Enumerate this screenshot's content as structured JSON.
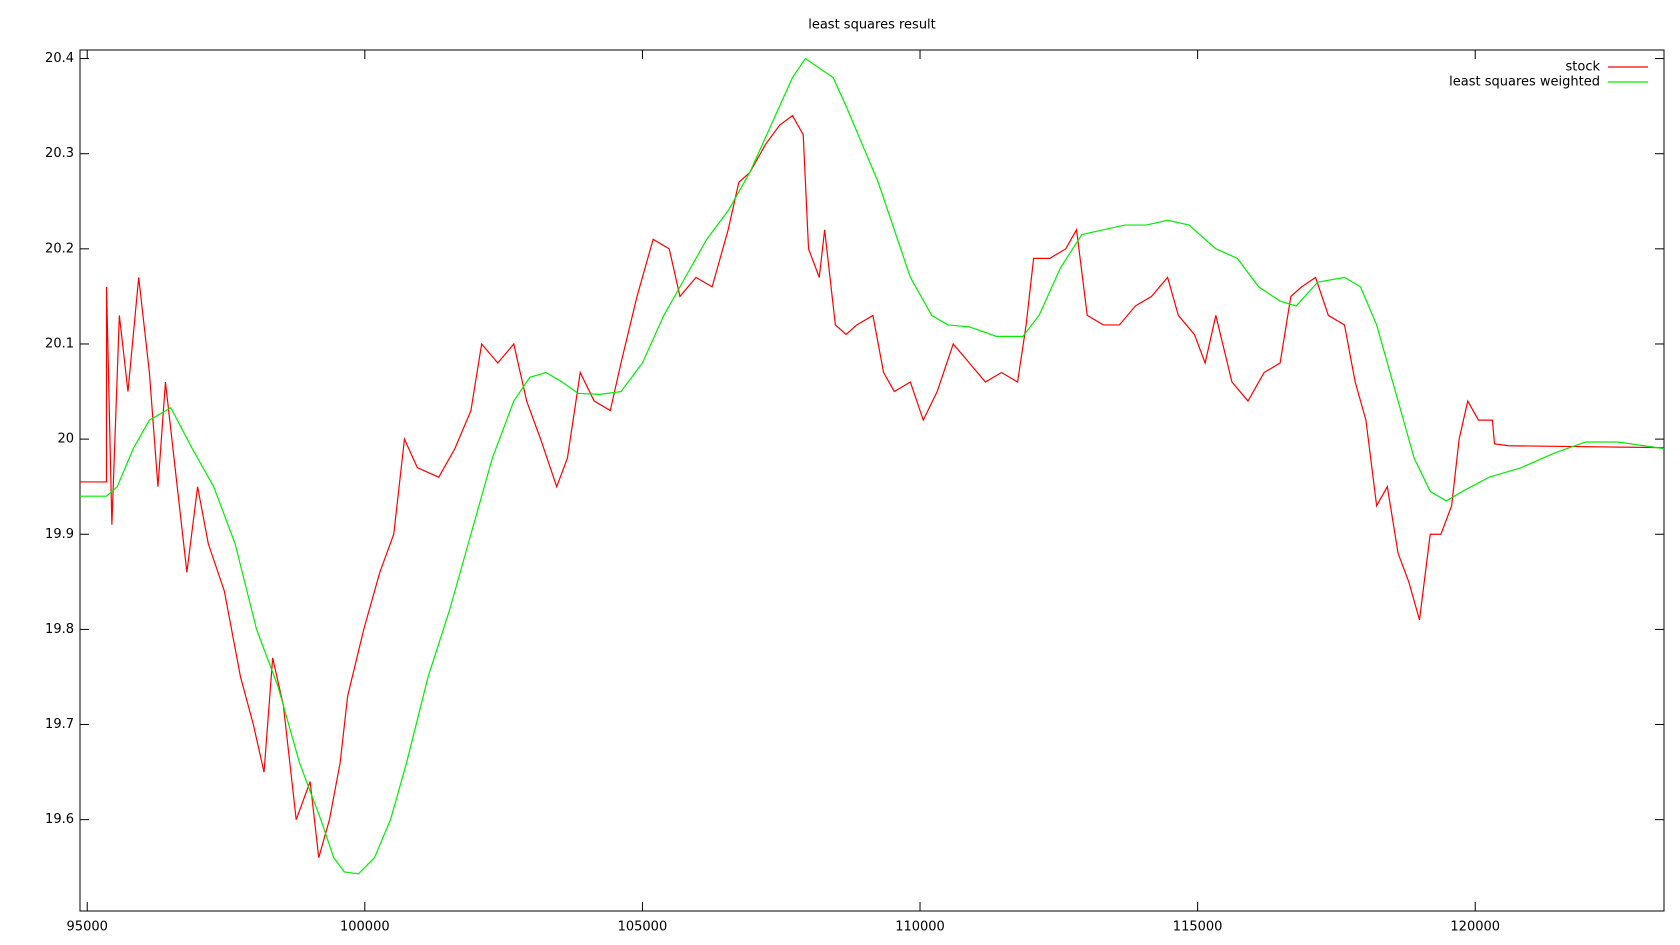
{
  "chart_data": {
    "type": "line",
    "title": "least squares result",
    "xlim": [
      94870,
      123400
    ],
    "ylim": [
      19.504,
      20.409
    ],
    "xticks": [
      95000,
      100000,
      105000,
      110000,
      115000,
      120000
    ],
    "yticks": [
      19.6,
      19.7,
      19.8,
      19.9,
      20,
      20.1,
      20.2,
      20.3,
      20.4
    ],
    "legend": "top-right",
    "series": [
      {
        "name": "stock",
        "color": "#ff0000",
        "x": [
          94870,
          95347,
          95348,
          95444,
          95579,
          95734,
          95927,
          96120,
          96274,
          96409,
          96602,
          96795,
          96988,
          97181,
          97471,
          97761,
          97992,
          98185,
          98340,
          98533,
          98764,
          99015,
          99170,
          99363,
          99556,
          99691,
          99981,
          100270,
          100521,
          100714,
          100946,
          101332,
          101622,
          101911,
          102104,
          102394,
          102683,
          102915,
          103166,
          103456,
          103649,
          103880,
          104131,
          104421,
          104614,
          104903,
          105193,
          105483,
          105676,
          105965,
          106255,
          106544,
          106737,
          106931,
          107220,
          107471,
          107703,
          107896,
          107992,
          108185,
          108282,
          108475,
          108668,
          108861,
          109151,
          109344,
          109537,
          109826,
          110058,
          110309,
          110598,
          110888,
          111178,
          111467,
          111757,
          111911,
          112046,
          112336,
          112625,
          112819,
          113012,
          113301,
          113591,
          113880,
          114170,
          114459,
          114653,
          114942,
          115135,
          115328,
          115618,
          115907,
          116197,
          116486,
          116679,
          116873,
          117124,
          117355,
          117645,
          117838,
          118031,
          118224,
          118417,
          118610,
          118803,
          118996,
          119189,
          119382,
          119575,
          119710,
          119865,
          120058,
          120309,
          120347,
          120598,
          123397
        ],
        "values": [
          19.955,
          19.955,
          20.16,
          19.91,
          20.13,
          20.05,
          20.17,
          20.07,
          19.95,
          20.06,
          19.96,
          19.86,
          19.95,
          19.89,
          19.84,
          19.75,
          19.7,
          19.65,
          19.77,
          19.72,
          19.6,
          19.64,
          19.56,
          19.6,
          19.66,
          19.73,
          19.8,
          19.86,
          19.9,
          20.0,
          19.97,
          19.96,
          19.99,
          20.03,
          20.1,
          20.08,
          20.1,
          20.04,
          20.0,
          19.95,
          19.98,
          20.07,
          20.04,
          20.03,
          20.08,
          20.15,
          20.21,
          20.2,
          20.15,
          20.17,
          20.16,
          20.22,
          20.27,
          20.28,
          20.31,
          20.33,
          20.34,
          20.32,
          20.2,
          20.17,
          20.22,
          20.12,
          20.11,
          20.12,
          20.13,
          20.07,
          20.05,
          20.06,
          20.02,
          20.05,
          20.1,
          20.08,
          20.06,
          20.07,
          20.06,
          20.12,
          20.19,
          20.19,
          20.2,
          20.22,
          20.13,
          20.12,
          20.12,
          20.14,
          20.15,
          20.17,
          20.13,
          20.11,
          20.08,
          20.13,
          20.06,
          20.04,
          20.07,
          20.08,
          20.15,
          20.16,
          20.17,
          20.13,
          20.12,
          20.06,
          20.02,
          19.93,
          19.95,
          19.88,
          19.85,
          19.81,
          19.9,
          19.9,
          19.93,
          20.0,
          20.04,
          20.02,
          20.02,
          19.995,
          19.993,
          19.991
        ]
      },
      {
        "name": "least squares weighted",
        "color": "#00ee00",
        "x": [
          94870,
          95347,
          95541,
          95830,
          96120,
          96506,
          96892,
          97278,
          97664,
          98050,
          98436,
          98822,
          99208,
          99440,
          99633,
          99884,
          100174,
          100463,
          100753,
          101139,
          101525,
          101911,
          102297,
          102683,
          102973,
          103263,
          103552,
          103842,
          104228,
          104614,
          105000,
          105386,
          105772,
          106158,
          106544,
          106931,
          107317,
          107703,
          107934,
          108185,
          108436,
          108668,
          108958,
          109247,
          109537,
          109826,
          110212,
          110502,
          110888,
          111371,
          111853,
          112143,
          112529,
          112915,
          113301,
          113687,
          114073,
          114459,
          114846,
          115328,
          115714,
          116100,
          116486,
          116776,
          117162,
          117645,
          117934,
          118224,
          118514,
          118900,
          119189,
          119479,
          119768,
          120251,
          120830,
          121409,
          121988,
          122568,
          123397
        ],
        "values": [
          19.94,
          19.94,
          19.95,
          19.99,
          20.02,
          20.033,
          19.99,
          19.95,
          19.89,
          19.8,
          19.74,
          19.66,
          19.6,
          19.56,
          19.545,
          19.543,
          19.56,
          19.6,
          19.66,
          19.75,
          19.82,
          19.9,
          19.98,
          20.04,
          20.065,
          20.07,
          20.06,
          20.048,
          20.047,
          20.05,
          20.08,
          20.13,
          20.17,
          20.21,
          20.24,
          20.28,
          20.33,
          20.38,
          20.4,
          20.39,
          20.38,
          20.35,
          20.31,
          20.27,
          20.22,
          20.17,
          20.13,
          20.12,
          20.118,
          20.108,
          20.108,
          20.13,
          20.18,
          20.215,
          20.22,
          20.225,
          20.225,
          20.23,
          20.225,
          20.2,
          20.19,
          20.16,
          20.145,
          20.14,
          20.165,
          20.17,
          20.16,
          20.12,
          20.06,
          19.98,
          19.945,
          19.935,
          19.945,
          19.96,
          19.97,
          19.985,
          19.997,
          19.997,
          19.99
        ]
      }
    ]
  }
}
